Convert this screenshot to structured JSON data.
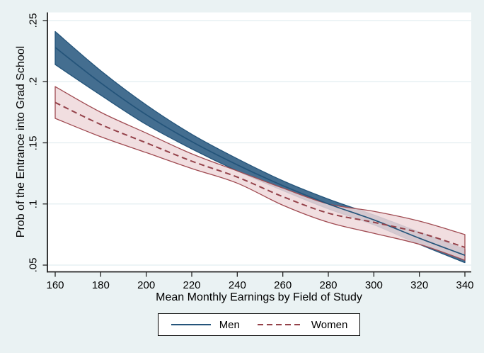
{
  "chart_data": {
    "type": "line",
    "title": "",
    "xlabel": "Mean Monthly Earnings by Field of Study",
    "ylabel": "Prob of the Entrance into Grad School",
    "x": [
      160,
      180,
      200,
      220,
      240,
      260,
      280,
      300,
      320,
      340
    ],
    "x_tick_labels": [
      "160",
      "180",
      "200",
      "220",
      "240",
      "260",
      "280",
      "300",
      "320",
      "340"
    ],
    "y_ticks": [
      0.05,
      0.1,
      0.15,
      0.2,
      0.25
    ],
    "y_tick_labels": [
      ".05",
      ".1",
      ".15",
      ".2",
      ".25"
    ],
    "xlim": [
      156.5,
      343
    ],
    "ylim": [
      0.041,
      0.256
    ],
    "grid": "horizontal",
    "legend_position": "bottom-center",
    "series": [
      {
        "name": "Men",
        "line_style": "solid",
        "line_color": "#24547a",
        "band_border": "#24547a",
        "band_fill": "#446e90",
        "band_opacity": 1,
        "values": [
          0.228,
          0.199,
          0.173,
          0.151,
          0.132,
          0.115,
          0.1,
          0.087,
          0.072,
          0.058
        ],
        "upper": [
          0.241,
          0.209,
          0.181,
          0.157,
          0.137,
          0.119,
          0.104,
          0.091,
          0.077,
          0.063
        ],
        "lower": [
          0.214,
          0.189,
          0.165,
          0.145,
          0.127,
          0.111,
          0.096,
          0.083,
          0.067,
          0.052
        ]
      },
      {
        "name": "Women",
        "line_style": "dashed",
        "line_color": "#944149",
        "band_border": "#a04b52",
        "band_fill": "#eed8da",
        "band_opacity": 0.85,
        "values": [
          0.183,
          0.165,
          0.15,
          0.135,
          0.122,
          0.106,
          0.0925,
          0.085,
          0.0765,
          0.0645
        ],
        "upper": [
          0.196,
          0.175,
          0.158,
          0.141,
          0.127,
          0.113,
          0.1,
          0.094,
          0.086,
          0.075
        ],
        "lower": [
          0.17,
          0.155,
          0.142,
          0.129,
          0.117,
          0.099,
          0.085,
          0.076,
          0.067,
          0.054
        ]
      }
    ]
  },
  "colors": {
    "background": "#eaf2f3",
    "plot_background": "#ffffff",
    "grid": "#e2edf0",
    "axis": "#222222",
    "text": "#000000"
  },
  "legend": {
    "men_label": "Men",
    "women_label": "Women"
  }
}
